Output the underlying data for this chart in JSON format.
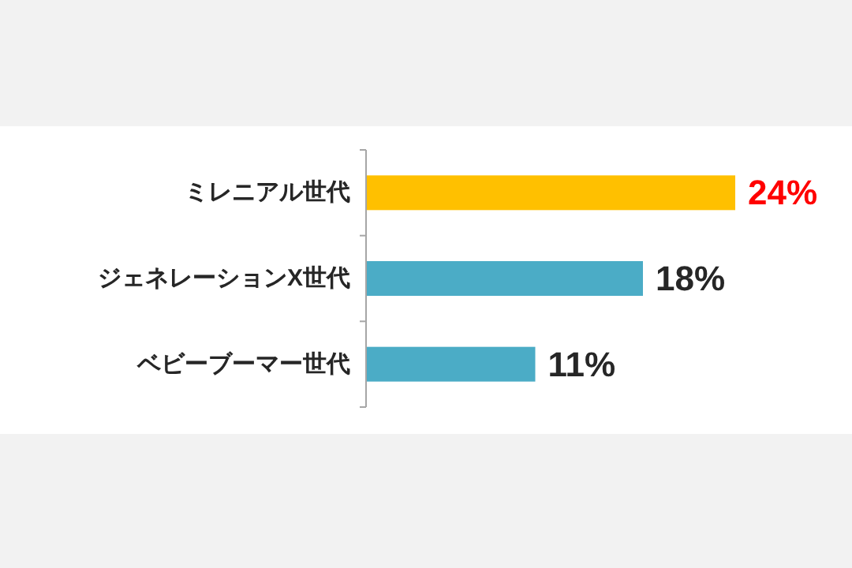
{
  "chart_data": {
    "type": "bar",
    "orientation": "horizontal",
    "categories": [
      "ミレニアル世代",
      "ジェネレーションX世代",
      "ベビーブーマー世代"
    ],
    "values": [
      24,
      18,
      11
    ],
    "colors": [
      "#ffc000",
      "#4bacc6",
      "#4bacc6"
    ],
    "value_labels": [
      "24%",
      "18%",
      "11%"
    ]
  }
}
